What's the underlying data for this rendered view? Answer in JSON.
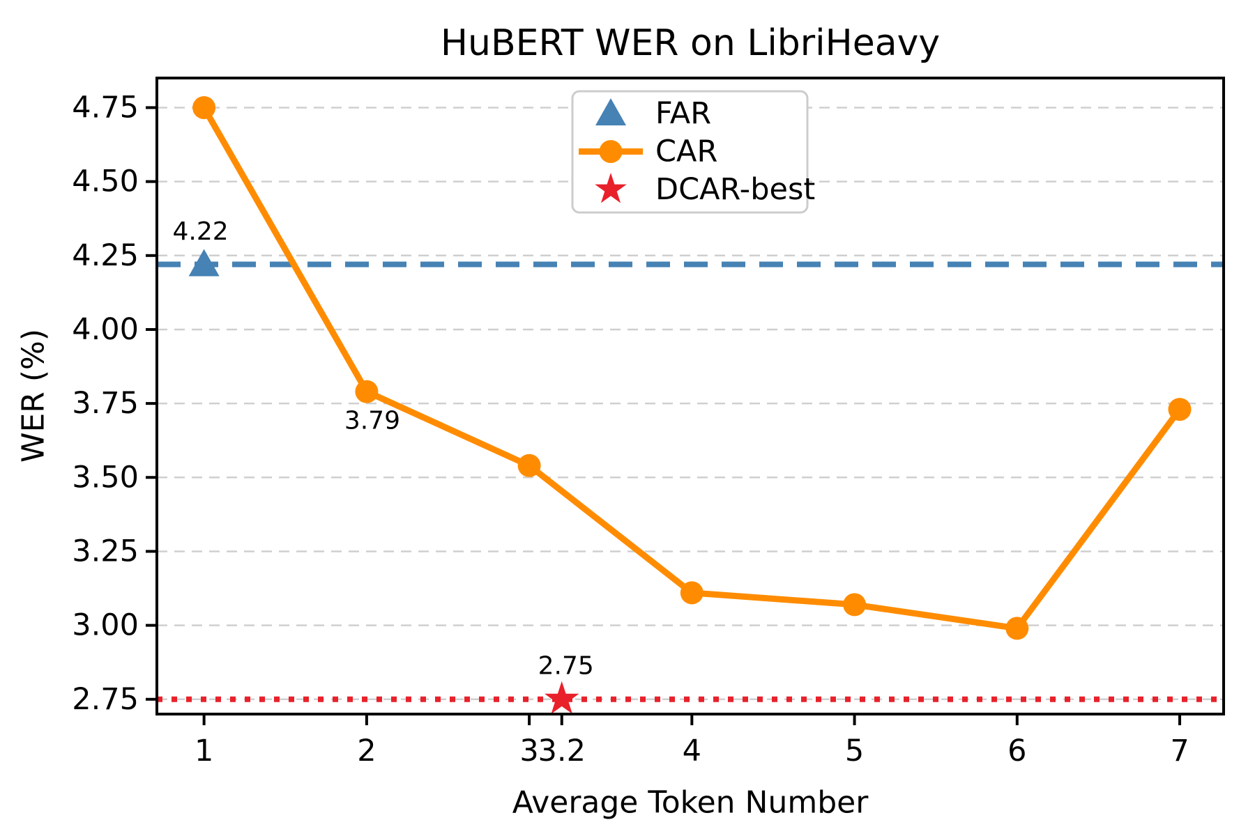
{
  "chart_data": {
    "type": "line",
    "title": "HuBERT WER on LibriHeavy",
    "xlabel": "Average Token Number",
    "ylabel": "WER (%)",
    "xlim": [
      0.71,
      7.27
    ],
    "ylim": [
      2.7,
      4.85
    ],
    "grid": "horizontal dashed gridlines, light gray",
    "grid_color": "#cfcfcf",
    "frame_color": "#000000",
    "x_ticks": [
      {
        "value": 1,
        "label": "1"
      },
      {
        "value": 2,
        "label": "2"
      },
      {
        "value": 3,
        "label": "3"
      },
      {
        "value": 3.2,
        "label": "3.2"
      },
      {
        "value": 4,
        "label": "4"
      },
      {
        "value": 5,
        "label": "5"
      },
      {
        "value": 6,
        "label": "6"
      },
      {
        "value": 7,
        "label": "7"
      }
    ],
    "y_ticks": [
      {
        "value": 2.75,
        "label": "2.75"
      },
      {
        "value": 3.0,
        "label": "3.00"
      },
      {
        "value": 3.25,
        "label": "3.25"
      },
      {
        "value": 3.5,
        "label": "3.50"
      },
      {
        "value": 3.75,
        "label": "3.75"
      },
      {
        "value": 4.0,
        "label": "4.00"
      },
      {
        "value": 4.25,
        "label": "4.25"
      },
      {
        "value": 4.5,
        "label": "4.50"
      },
      {
        "value": 4.75,
        "label": "4.75"
      }
    ],
    "series": [
      {
        "name": "FAR",
        "type": "hline",
        "value": 4.22,
        "color": "#4682b4",
        "linestyle": "dashed",
        "marker": "triangle",
        "marker_x": 1,
        "annotation": {
          "text": "4.22",
          "x": 1,
          "y": 4.22,
          "dx": -5,
          "dy": -47
        }
      },
      {
        "name": "CAR",
        "type": "line",
        "color": "#ff8c00",
        "linestyle": "solid",
        "marker": "circle",
        "x": [
          1,
          2,
          3,
          4,
          5,
          6,
          7
        ],
        "y": [
          4.75,
          3.79,
          3.54,
          3.11,
          3.07,
          2.99,
          3.73
        ],
        "annotation": {
          "text": "3.79",
          "x": 2,
          "y": 3.79,
          "dx": 8,
          "dy": 42
        }
      },
      {
        "name": "DCAR-best",
        "type": "hline",
        "value": 2.75,
        "color": "#e8212b",
        "linestyle": "dotted",
        "marker": "star",
        "marker_x": 3.2,
        "annotation": {
          "text": "2.75",
          "x": 3.2,
          "y": 2.75,
          "dx": 6,
          "dy": -48
        }
      }
    ],
    "legend": {
      "position": "upper center-right",
      "entries": [
        {
          "label": "FAR",
          "marker": "triangle",
          "color": "#4682b4"
        },
        {
          "label": "CAR",
          "marker": "circle-line",
          "color": "#ff8c00"
        },
        {
          "label": "DCAR-best",
          "marker": "star",
          "color": "#e8212b"
        }
      ]
    }
  }
}
